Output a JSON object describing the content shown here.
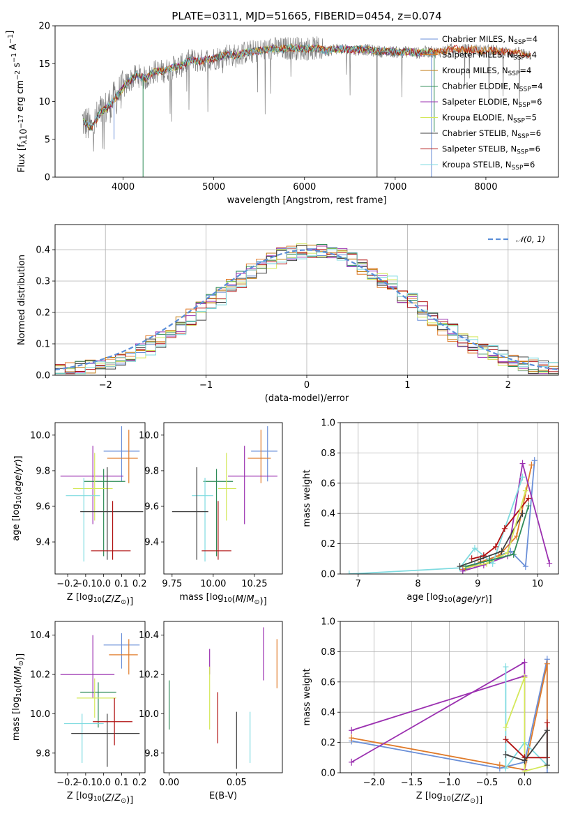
{
  "figure": {
    "title": "PLATE=0311, MJD=51665, FIBERID=0454, z=0.074"
  },
  "colors": {
    "data": "#808080",
    "models": [
      "#6a8fd8",
      "#e07b2a",
      "#c07a10",
      "#2e8b57",
      "#9b30b0",
      "#d4e85a",
      "#404040",
      "#b01010",
      "#7fdbe0"
    ]
  },
  "chart_data": [
    {
      "id": "spectrum",
      "type": "line",
      "title": "PLATE=0311, MJD=51665, FIBERID=0454, z=0.074",
      "xlabel": "wavelength [Angstrom, rest frame]",
      "ylabel": "Flux [f_λ 10^-17 erg cm^-2 s^-1 A^-1]",
      "xlim": [
        3250,
        8800
      ],
      "ylim": [
        0,
        20
      ],
      "xticks": [
        4000,
        5000,
        6000,
        7000,
        8000
      ],
      "yticks": [
        0,
        5,
        10,
        15,
        20
      ],
      "legend": {
        "position": "right",
        "entries": [
          {
            "model": "Chabrier MILES",
            "n": "4"
          },
          {
            "model": "Salpeter MILES",
            "n": "4"
          },
          {
            "model": "Kroupa MILES",
            "n": "4"
          },
          {
            "model": "Chabrier ELODIE",
            "n": "4"
          },
          {
            "model": "Salpeter ELODIE",
            "n": "6"
          },
          {
            "model": "Kroupa ELODIE",
            "n": "5"
          },
          {
            "model": "Chabrier STELIB",
            "n": "6"
          },
          {
            "model": "Salpeter STELIB",
            "n": "6"
          },
          {
            "model": "Kroupa STELIB",
            "n": "6"
          }
        ]
      },
      "continuum": {
        "x": [
          3550,
          3650,
          3750,
          3850,
          3950,
          4050,
          4150,
          4250,
          4350,
          4450,
          4550,
          4650,
          4750,
          4850,
          4950,
          5050,
          5150,
          5250,
          5350,
          5450,
          5550,
          5650,
          5750,
          5850,
          5950,
          6050,
          6150,
          6250,
          6350,
          6450,
          6550,
          6650,
          6750,
          6850,
          6950,
          7050,
          7150,
          7250,
          7350,
          7450,
          7550,
          7650,
          7750,
          7850,
          7950,
          8050,
          8150,
          8250,
          8350,
          8450,
          8500
        ],
        "y": [
          7.5,
          6.5,
          8.5,
          9.5,
          11.0,
          12.5,
          13.5,
          13.0,
          14.0,
          14.0,
          14.5,
          14.8,
          15.5,
          15.3,
          15.6,
          15.8,
          16.3,
          16.0,
          16.5,
          16.6,
          16.8,
          17.0,
          16.9,
          17.1,
          17.0,
          17.0,
          17.0,
          16.7,
          17.0,
          16.9,
          16.8,
          16.9,
          16.7,
          16.6,
          16.6,
          16.5,
          16.6,
          16.4,
          16.6,
          16.5,
          16.7,
          17.0,
          16.8,
          16.9,
          16.7,
          16.8,
          16.6,
          16.5,
          16.4,
          16.3,
          16.2
        ]
      }
    },
    {
      "id": "residuals",
      "type": "step",
      "xlabel": "(data-model)/error",
      "ylabel": "Normed distribution",
      "xlim": [
        -2.5,
        2.5
      ],
      "ylim": [
        0,
        0.48
      ],
      "xticks": [
        -2,
        -1,
        0,
        1,
        2
      ],
      "yticks": [
        0.0,
        0.1,
        0.2,
        0.3,
        0.4
      ],
      "grid": true,
      "legend": {
        "position": "top-right",
        "label": "𝒩(0, 1)"
      }
    },
    {
      "id": "age-vs-Z",
      "type": "errorbar",
      "xlabel": "Z [log10(Z/Z⊙)]",
      "ylabel": "age  [log10(age/yr)]",
      "xlim": [
        -0.27,
        0.23
      ],
      "ylim": [
        9.22,
        10.07
      ],
      "xticks": [
        -0.2,
        -0.1,
        0.0,
        0.1,
        0.2
      ],
      "yticks": [
        9.4,
        9.6,
        9.8,
        10.0
      ],
      "points": [
        {
          "series": 0,
          "x": 0.1,
          "y": 9.91,
          "xerr": [
            0.1,
            0.1
          ],
          "yerr": [
            0.17,
            0.14
          ]
        },
        {
          "series": 1,
          "x": 0.14,
          "y": 9.87,
          "xerr": [
            0.12,
            0.05
          ],
          "yerr": [
            0.14,
            0.16
          ]
        },
        {
          "series": 4,
          "x": -0.06,
          "y": 9.77,
          "xerr": [
            0.18,
            0.17
          ],
          "yerr": [
            0.27,
            0.17
          ]
        },
        {
          "series": 3,
          "x": 0.0,
          "y": 9.74,
          "xerr": [
            0.11,
            0.12
          ],
          "yerr": [
            0.42,
            0.07
          ]
        },
        {
          "series": 5,
          "x": -0.05,
          "y": 9.7,
          "xerr": [
            0.12,
            0.1
          ],
          "yerr": [
            0.18,
            0.2
          ]
        },
        {
          "series": 8,
          "x": -0.11,
          "y": 9.66,
          "xerr": [
            0.1,
            0.09
          ],
          "yerr": [
            0.37,
            0.1
          ]
        },
        {
          "series": 6,
          "x": 0.02,
          "y": 9.57,
          "xerr": [
            0.15,
            0.2
          ],
          "yerr": [
            0.27,
            0.25
          ]
        },
        {
          "series": 7,
          "x": 0.05,
          "y": 9.35,
          "xerr": [
            0.12,
            0.1
          ],
          "yerr": [
            0.05,
            0.28
          ]
        }
      ]
    },
    {
      "id": "age-vs-mass",
      "type": "errorbar",
      "xlabel": "mass [log10(M/M⊙)]",
      "ylabel": "",
      "xlim": [
        9.7,
        10.42
      ],
      "ylim": [
        9.22,
        10.07
      ],
      "xticks": [
        9.75,
        10.0,
        10.25
      ],
      "yticks": [
        9.4,
        9.6,
        9.8,
        10.0
      ],
      "points": [
        {
          "series": 0,
          "x": 10.33,
          "y": 9.91,
          "xerr": [
            0.1,
            0.06
          ],
          "yerr": [
            0.17,
            0.14
          ]
        },
        {
          "series": 1,
          "x": 10.29,
          "y": 9.87,
          "xerr": [
            0.08,
            0.06
          ],
          "yerr": [
            0.14,
            0.16
          ]
        },
        {
          "series": 4,
          "x": 10.19,
          "y": 9.77,
          "xerr": [
            0.1,
            0.2
          ],
          "yerr": [
            0.27,
            0.17
          ]
        },
        {
          "series": 3,
          "x": 10.02,
          "y": 9.74,
          "xerr": [
            0.08,
            0.1
          ],
          "yerr": [
            0.42,
            0.07
          ]
        },
        {
          "series": 5,
          "x": 10.08,
          "y": 9.7,
          "xerr": [
            0.05,
            0.06
          ],
          "yerr": [
            0.18,
            0.2
          ]
        },
        {
          "series": 8,
          "x": 9.95,
          "y": 9.66,
          "xerr": [
            0.08,
            0.05
          ],
          "yerr": [
            0.37,
            0.1
          ]
        },
        {
          "series": 6,
          "x": 9.9,
          "y": 9.57,
          "xerr": [
            0.15,
            0.07
          ],
          "yerr": [
            0.27,
            0.25
          ]
        },
        {
          "series": 7,
          "x": 10.03,
          "y": 9.35,
          "xerr": [
            0.1,
            0.08
          ],
          "yerr": [
            0.05,
            0.28
          ]
        }
      ]
    },
    {
      "id": "weight-vs-age",
      "type": "line",
      "xlabel": "age  [log10(age/yr)]",
      "ylabel": "mass weight",
      "xlim": [
        6.7,
        10.35
      ],
      "ylim": [
        0,
        1.0
      ],
      "xticks": [
        7,
        8,
        9,
        10
      ],
      "yticks": [
        0.0,
        0.2,
        0.4,
        0.6,
        0.8,
        1.0
      ],
      "grid": true,
      "series": [
        {
          "series": 0,
          "x": [
            8.75,
            8.95,
            9.2,
            9.55,
            9.8,
            9.95
          ],
          "y": [
            0.02,
            0.06,
            0.1,
            0.15,
            0.05,
            0.75
          ]
        },
        {
          "series": 1,
          "x": [
            8.75,
            9.05,
            9.35,
            9.65,
            9.9
          ],
          "y": [
            0.03,
            0.08,
            0.12,
            0.25,
            0.72
          ]
        },
        {
          "series": 4,
          "x": [
            8.75,
            9.1,
            9.5,
            9.75,
            10.2
          ],
          "y": [
            0.02,
            0.06,
            0.12,
            0.73,
            0.07
          ]
        },
        {
          "series": 8,
          "x": [
            6.85,
            8.7,
            8.95,
            9.25,
            9.75
          ],
          "y": [
            0.0,
            0.04,
            0.17,
            0.07,
            0.64
          ]
        },
        {
          "series": 7,
          "x": [
            8.9,
            9.1,
            9.3,
            9.45,
            9.85
          ],
          "y": [
            0.1,
            0.12,
            0.18,
            0.3,
            0.5
          ]
        },
        {
          "series": 6,
          "x": [
            8.7,
            9.05,
            9.4,
            9.75
          ],
          "y": [
            0.05,
            0.1,
            0.15,
            0.4
          ]
        },
        {
          "series": 5,
          "x": [
            8.8,
            9.15,
            9.5,
            9.8
          ],
          "y": [
            0.04,
            0.07,
            0.14,
            0.55
          ]
        },
        {
          "series": 3,
          "x": [
            8.8,
            9.2,
            9.6,
            9.85
          ],
          "y": [
            0.05,
            0.09,
            0.13,
            0.45
          ]
        }
      ]
    },
    {
      "id": "mass-vs-Z",
      "type": "errorbar",
      "xlabel": "Z [log10(Z/Z⊙)]",
      "ylabel": "mass [log10(M/M⊙)]",
      "xlim": [
        -0.27,
        0.23
      ],
      "ylim": [
        9.7,
        10.47
      ],
      "xticks": [
        -0.2,
        -0.1,
        0.0,
        0.1,
        0.2
      ],
      "yticks": [
        9.8,
        10.0,
        10.2,
        10.4
      ],
      "points": [
        {
          "series": 0,
          "x": 0.1,
          "y": 10.35,
          "xerr": [
            0.1,
            0.1
          ],
          "yerr": [
            0.12,
            0.06
          ]
        },
        {
          "series": 1,
          "x": 0.14,
          "y": 10.3,
          "xerr": [
            0.11,
            0.05
          ],
          "yerr": [
            0.1,
            0.08
          ]
        },
        {
          "series": 4,
          "x": -0.06,
          "y": 10.2,
          "xerr": [
            0.18,
            0.12
          ],
          "yerr": [
            0.12,
            0.2
          ]
        },
        {
          "series": 3,
          "x": -0.03,
          "y": 10.11,
          "xerr": [
            0.1,
            0.1
          ],
          "yerr": [
            0.18,
            0.05
          ]
        },
        {
          "series": 5,
          "x": -0.05,
          "y": 10.08,
          "xerr": [
            0.1,
            0.12
          ],
          "yerr": [
            0.1,
            0.1
          ]
        },
        {
          "series": 8,
          "x": -0.12,
          "y": 9.95,
          "xerr": [
            0.1,
            0.12
          ],
          "yerr": [
            0.2,
            0.05
          ]
        },
        {
          "series": 6,
          "x": 0.02,
          "y": 9.9,
          "xerr": [
            0.2,
            0.18
          ],
          "yerr": [
            0.17,
            0.1
          ]
        },
        {
          "series": 7,
          "x": 0.06,
          "y": 9.96,
          "xerr": [
            0.12,
            0.1
          ],
          "yerr": [
            0.12,
            0.12
          ]
        }
      ]
    },
    {
      "id": "mass-vs-EBV",
      "type": "errorbar",
      "xlabel": "E(B-V)",
      "ylabel": "",
      "xlim": [
        -0.004,
        0.084
      ],
      "ylim": [
        9.7,
        10.47
      ],
      "xticks": [
        0.0,
        0.05
      ],
      "yticks": [
        9.8,
        10.0,
        10.2,
        10.4
      ],
      "points": [
        {
          "series": 3,
          "x": 0.0,
          "y": 10.05,
          "xerr": [
            0,
            0
          ],
          "yerr": [
            0.13,
            0.12
          ]
        },
        {
          "series": 4,
          "x": 0.03,
          "y": 10.25,
          "xerr": [
            0,
            0
          ],
          "yerr": [
            0.05,
            0.08
          ]
        },
        {
          "series": 5,
          "x": 0.03,
          "y": 10.08,
          "xerr": [
            0,
            0
          ],
          "yerr": [
            0.16,
            0.16
          ]
        },
        {
          "series": 7,
          "x": 0.036,
          "y": 9.98,
          "xerr": [
            0,
            0
          ],
          "yerr": [
            0.13,
            0.13
          ]
        },
        {
          "series": 6,
          "x": 0.05,
          "y": 9.87,
          "xerr": [
            0,
            0
          ],
          "yerr": [
            0.15,
            0.14
          ]
        },
        {
          "series": 8,
          "x": 0.06,
          "y": 9.89,
          "xerr": [
            0,
            0
          ],
          "yerr": [
            0.14,
            0.12
          ]
        },
        {
          "series": 4,
          "x": 0.07,
          "y": 10.27,
          "xerr": [
            0,
            0
          ],
          "yerr": [
            0.1,
            0.17
          ]
        },
        {
          "series": 1,
          "x": 0.08,
          "y": 10.26,
          "xerr": [
            0,
            0
          ],
          "yerr": [
            0.13,
            0.12
          ]
        }
      ]
    },
    {
      "id": "weight-vs-Z",
      "type": "line",
      "xlabel": "Z [log10(Z/Z⊙)]",
      "ylabel": "mass weight",
      "xlim": [
        -2.45,
        0.45
      ],
      "ylim": [
        0,
        1.0
      ],
      "xticks": [
        -2.0,
        -1.5,
        -1.0,
        -0.5,
        0.0
      ],
      "yticks": [
        0.0,
        0.2,
        0.4,
        0.6,
        0.8,
        1.0
      ],
      "grid": true,
      "series": [
        {
          "series": 0,
          "x": [
            -2.3,
            -0.33,
            0.0,
            0.3,
            0.3
          ],
          "y": [
            0.21,
            0.03,
            0.07,
            0.75,
            0.0
          ]
        },
        {
          "series": 1,
          "x": [
            -2.3,
            -0.33,
            0.0,
            0.3,
            0.3
          ],
          "y": [
            0.23,
            0.05,
            0.02,
            0.72,
            0.1
          ]
        },
        {
          "series": 4,
          "x": [
            -2.3,
            0.0,
            0.0
          ],
          "y": [
            0.07,
            0.73,
            0.02
          ]
        },
        {
          "series": 4,
          "x": [
            -2.3,
            0.0
          ],
          "y": [
            0.28,
            0.64
          ]
        },
        {
          "series": 8,
          "x": [
            -0.25,
            -0.25,
            0.0,
            0.3
          ],
          "y": [
            0.7,
            0.03,
            0.2,
            0.05
          ]
        },
        {
          "series": 5,
          "x": [
            -0.25,
            0.0,
            0.0,
            0.3
          ],
          "y": [
            0.3,
            0.63,
            0.01,
            0.05
          ]
        },
        {
          "series": 7,
          "x": [
            -0.25,
            0.0,
            0.3,
            0.3
          ],
          "y": [
            0.22,
            0.1,
            0.1,
            0.33
          ]
        },
        {
          "series": 6,
          "x": [
            -0.25,
            0.0,
            0.3,
            0.3
          ],
          "y": [
            0.12,
            0.08,
            0.28,
            0.05
          ]
        }
      ]
    }
  ]
}
